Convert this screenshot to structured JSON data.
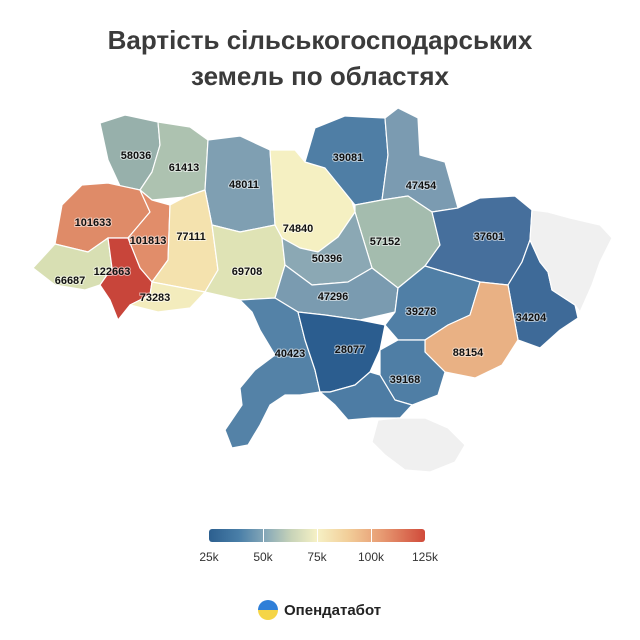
{
  "title": {
    "line1": "Вартість сільськогосподарських",
    "line2": "земель по областях"
  },
  "chart_data": {
    "type": "choropleth",
    "regions": [
      {
        "id": "volyn",
        "value": 58036,
        "label": "58036",
        "color": "#97b0ab"
      },
      {
        "id": "rivne",
        "value": 61413,
        "label": "61413",
        "color": "#adc2b0"
      },
      {
        "id": "zhytomyr",
        "value": 48011,
        "label": "48011",
        "color": "#7f9fb2"
      },
      {
        "id": "kyiv",
        "value": 74840,
        "label": "74840",
        "color": "#f5f0c2"
      },
      {
        "id": "chernihiv",
        "value": 39081,
        "label": "39081",
        "color": "#4f7ea5"
      },
      {
        "id": "sumy",
        "value": 47454,
        "label": "47454",
        "color": "#7b9bb1"
      },
      {
        "id": "lviv",
        "value": 101633,
        "label": "101633",
        "color": "#df8b68"
      },
      {
        "id": "ternopil",
        "value": 101813,
        "label": "101813",
        "color": "#e18d6a"
      },
      {
        "id": "khmelnytskyi",
        "value": 77111,
        "label": "77111",
        "color": "#f4e2ae"
      },
      {
        "id": "poltava",
        "value": 57152,
        "label": "57152",
        "color": "#a4bcae"
      },
      {
        "id": "kharkiv",
        "value": 37601,
        "label": "37601",
        "color": "#466f9c"
      },
      {
        "id": "zakarpattia",
        "value": 66687,
        "label": "66687",
        "color": "#d8dfb3"
      },
      {
        "id": "ivano-frankivsk",
        "value": 122663,
        "label": "122663",
        "color": "#c8453a"
      },
      {
        "id": "chernivtsi",
        "value": 73283,
        "label": "73283",
        "color": "#f3ecbd"
      },
      {
        "id": "vinnytsia",
        "value": 69708,
        "label": "69708",
        "color": "#dfe3b5"
      },
      {
        "id": "cherkasy",
        "value": 50396,
        "label": "50396",
        "color": "#8ba8b4"
      },
      {
        "id": "kirovohrad",
        "value": 47296,
        "label": "47296",
        "color": "#7a9bb0"
      },
      {
        "id": "dnipropetrovsk",
        "value": 39278,
        "label": "39278",
        "color": "#507fa6"
      },
      {
        "id": "luhansk",
        "value": 34204,
        "label": "34204",
        "color": "#3e6a98"
      },
      {
        "id": "donetsk",
        "value": 88154,
        "label": "88154",
        "color": "#e9b184"
      },
      {
        "id": "odesa",
        "value": 40423,
        "label": "40423",
        "color": "#5482a7"
      },
      {
        "id": "mykolaiv",
        "value": 28077,
        "label": "28077",
        "color": "#2b5d8f"
      },
      {
        "id": "zaporizhzhia",
        "value": 39168,
        "label": "39168",
        "color": "#4f7ea5"
      },
      {
        "id": "kherson",
        "value": null,
        "label": "",
        "color": "#4d7ca4"
      },
      {
        "id": "crimea",
        "value": null,
        "label": "",
        "color": "#f0f0f0"
      },
      {
        "id": "east-occupied",
        "value": null,
        "label": "",
        "color": "#f0f0f0"
      }
    ],
    "legend": {
      "min": 25000,
      "max": 125000,
      "ticks": [
        {
          "value": 25000,
          "label": "25k"
        },
        {
          "value": 50000,
          "label": "50k"
        },
        {
          "value": 75000,
          "label": "75k"
        },
        {
          "value": 100000,
          "label": "100k"
        },
        {
          "value": 125000,
          "label": "125k"
        }
      ]
    }
  },
  "brand": {
    "name": "Опендатабот",
    "icon": "opendatabot-logo-icon"
  }
}
